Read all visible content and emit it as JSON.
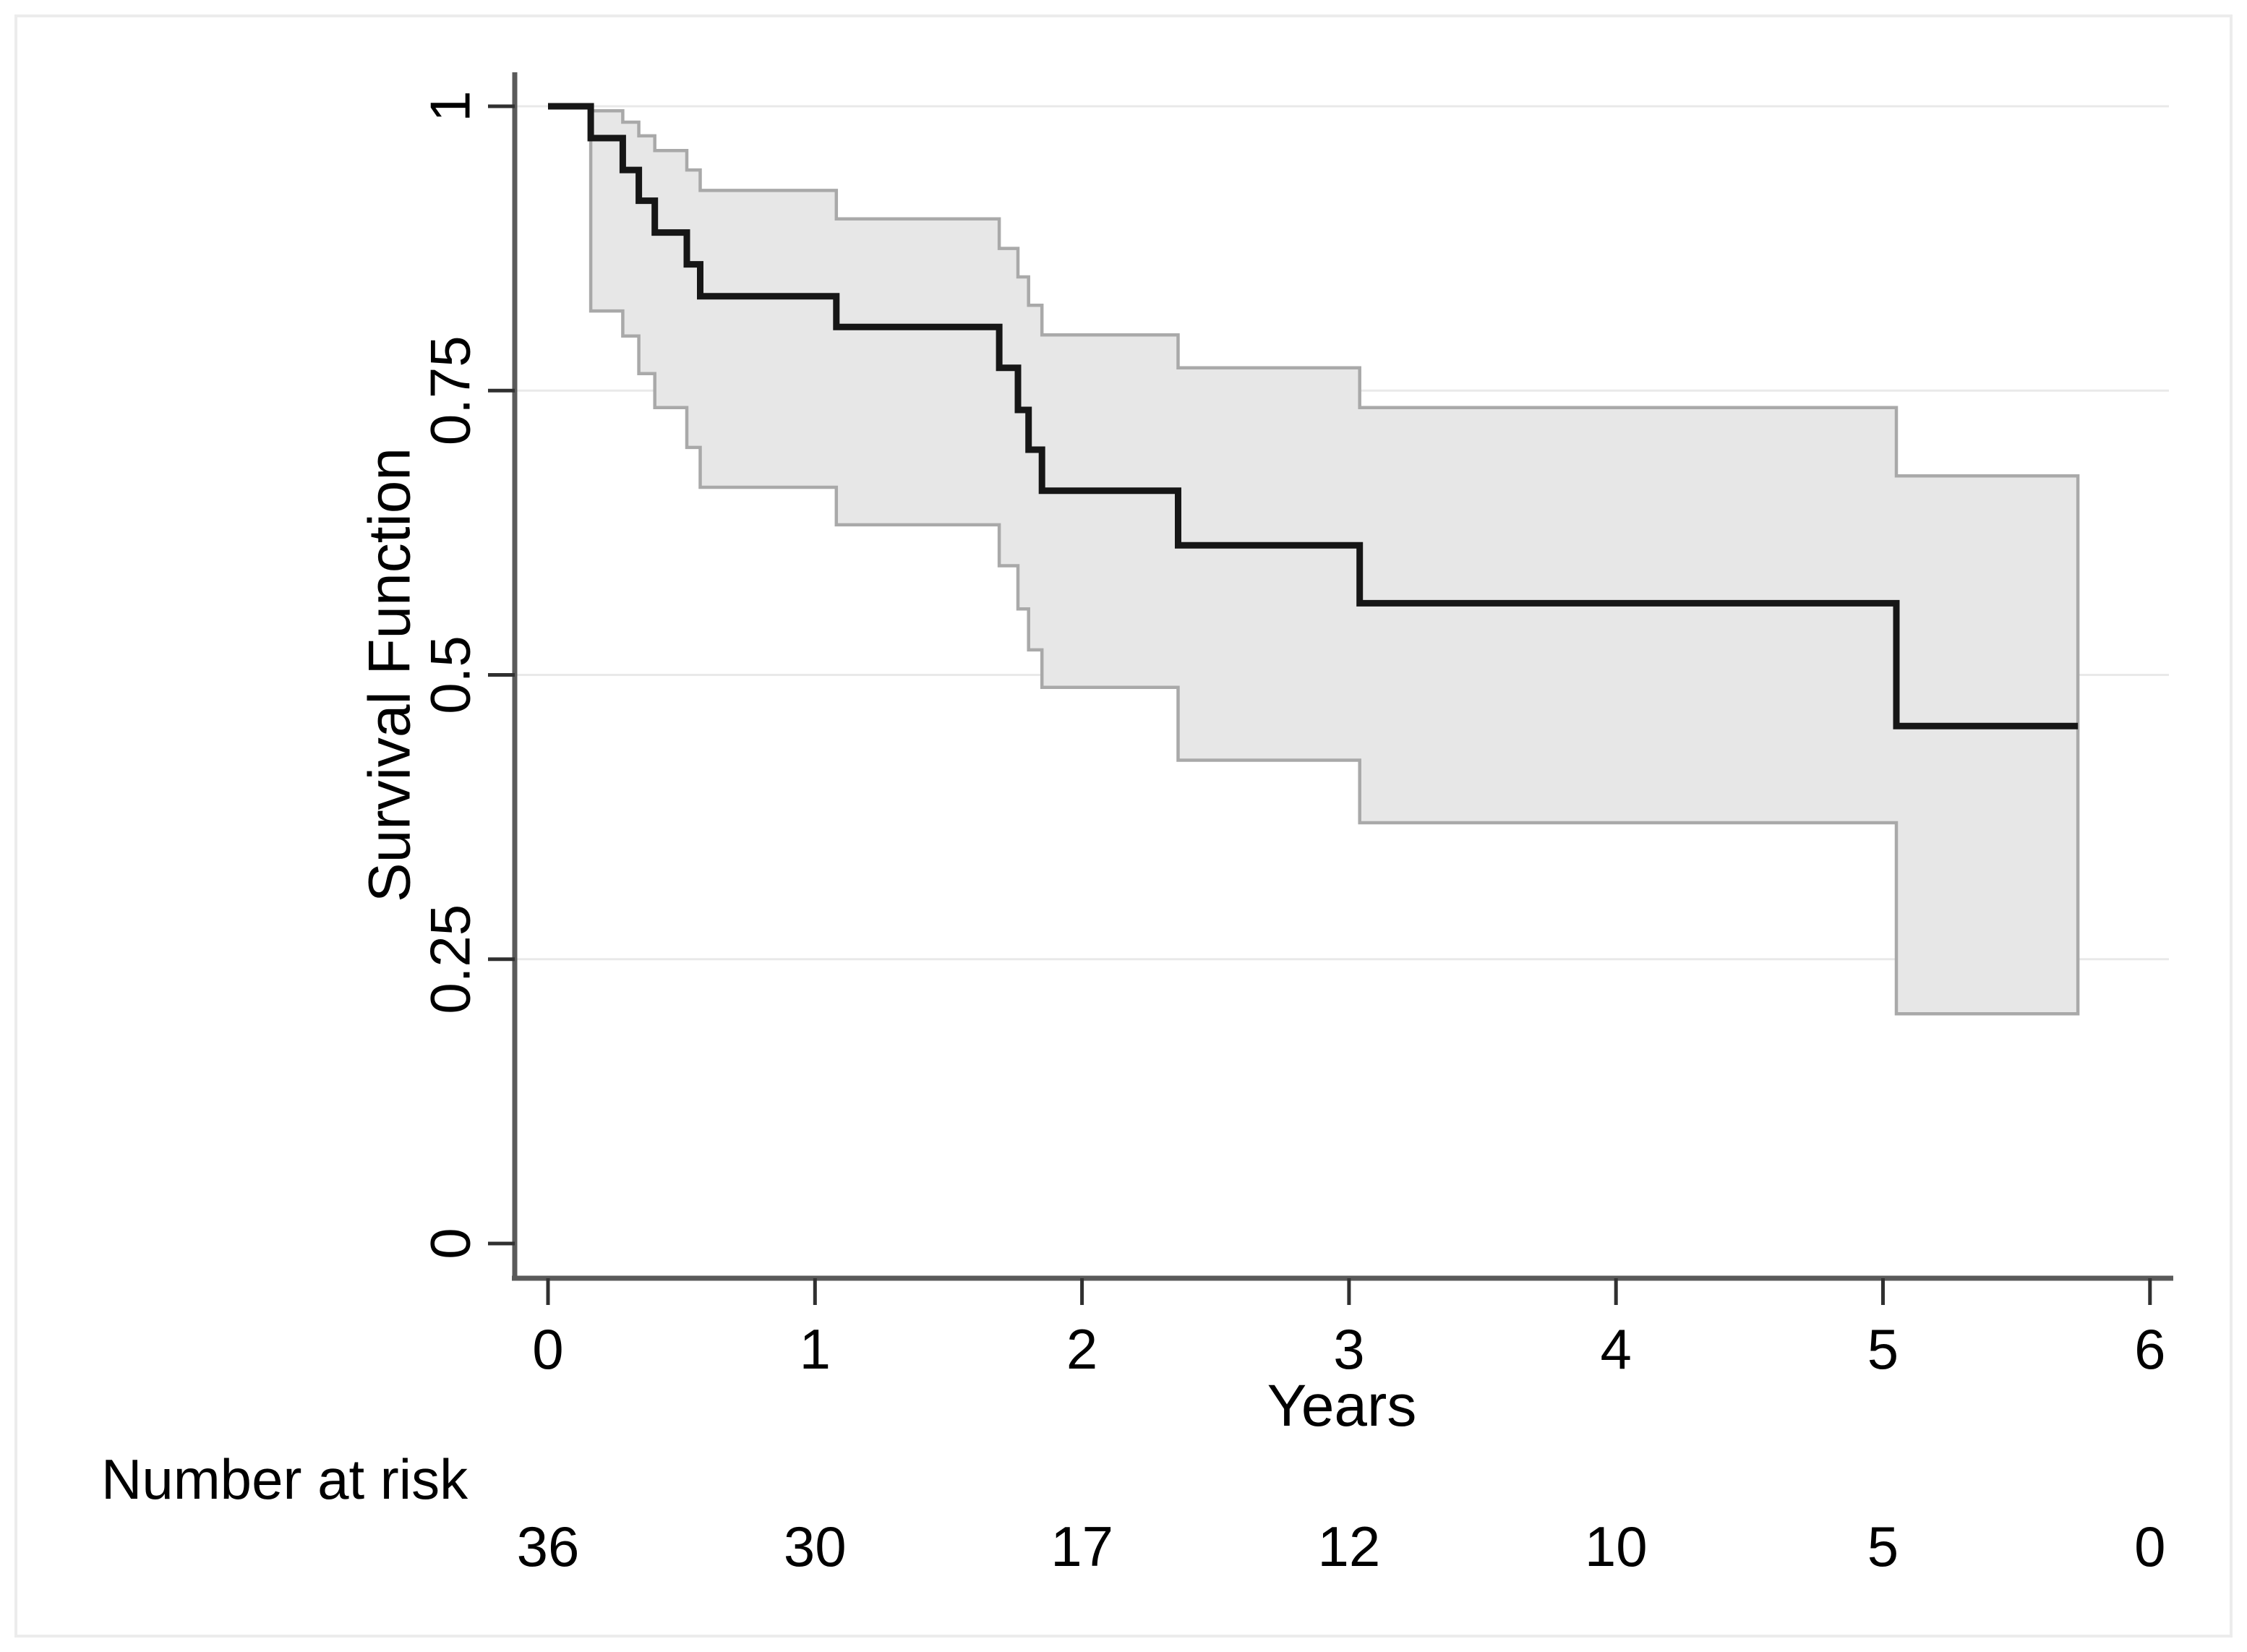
{
  "figure": {
    "background": "#ffffff",
    "border_color": "#ececec"
  },
  "chart_data": {
    "type": "line",
    "subtype": "kaplan-meier-step",
    "title": "",
    "xlabel": "Years",
    "ylabel": "Survival Function",
    "xlim": [
      0,
      6
    ],
    "ylim": [
      0,
      1
    ],
    "x_ticks": [
      0,
      1,
      2,
      3,
      4,
      5,
      6
    ],
    "x_tick_labels": [
      "0",
      "1",
      "2",
      "3",
      "4",
      "5",
      "6"
    ],
    "y_ticks": [
      0,
      0.25,
      0.5,
      0.75,
      1
    ],
    "y_tick_labels": [
      "0",
      "0.25",
      "0.5",
      "0.75",
      "1"
    ],
    "grid": "horizontal",
    "legend_position": "none",
    "end_time": 5.73,
    "series": [
      {
        "name": "survival-estimate",
        "color": "#161616",
        "points": [
          [
            0,
            1.0
          ],
          [
            0.16,
            0.972
          ],
          [
            0.28,
            0.944
          ],
          [
            0.34,
            0.917
          ],
          [
            0.4,
            0.889
          ],
          [
            0.52,
            0.861
          ],
          [
            0.57,
            0.833
          ],
          [
            1.08,
            0.806
          ],
          [
            1.69,
            0.77
          ],
          [
            1.76,
            0.733
          ],
          [
            1.8,
            0.698
          ],
          [
            1.85,
            0.662
          ],
          [
            2.36,
            0.614
          ],
          [
            3.04,
            0.563
          ],
          [
            5.05,
            0.455
          ]
        ]
      },
      {
        "name": "ci-upper-95",
        "color": "#a9a9a9",
        "points": [
          [
            0.16,
            0.996
          ],
          [
            0.28,
            0.986
          ],
          [
            0.34,
            0.974
          ],
          [
            0.4,
            0.961
          ],
          [
            0.52,
            0.944
          ],
          [
            0.57,
            0.926
          ],
          [
            1.08,
            0.901
          ],
          [
            1.69,
            0.875
          ],
          [
            1.76,
            0.85
          ],
          [
            1.8,
            0.825
          ],
          [
            1.85,
            0.799
          ],
          [
            2.36,
            0.77
          ],
          [
            3.04,
            0.735
          ],
          [
            5.05,
            0.675
          ]
        ]
      },
      {
        "name": "ci-lower-95",
        "color": "#a9a9a9",
        "points": [
          [
            0.16,
            0.82
          ],
          [
            0.28,
            0.798
          ],
          [
            0.34,
            0.765
          ],
          [
            0.4,
            0.735
          ],
          [
            0.52,
            0.7
          ],
          [
            0.57,
            0.665
          ],
          [
            1.08,
            0.632
          ],
          [
            1.69,
            0.596
          ],
          [
            1.76,
            0.558
          ],
          [
            1.8,
            0.522
          ],
          [
            1.85,
            0.489
          ],
          [
            2.36,
            0.425
          ],
          [
            3.04,
            0.37
          ],
          [
            5.05,
            0.202
          ]
        ]
      }
    ],
    "ci_fill": "#e7e7e7",
    "ci_edge": "#a9a9a9",
    "grid_color": "#e9e9e9",
    "axis_color": "#5a5a5a",
    "tick_color": "#303030",
    "text_color": "#000000",
    "risk_table": {
      "label": "Number at risk",
      "times": [
        0,
        1,
        2,
        3,
        4,
        5,
        6
      ],
      "counts": [
        "36",
        "30",
        "17",
        "12",
        "10",
        "5",
        "0"
      ]
    }
  }
}
